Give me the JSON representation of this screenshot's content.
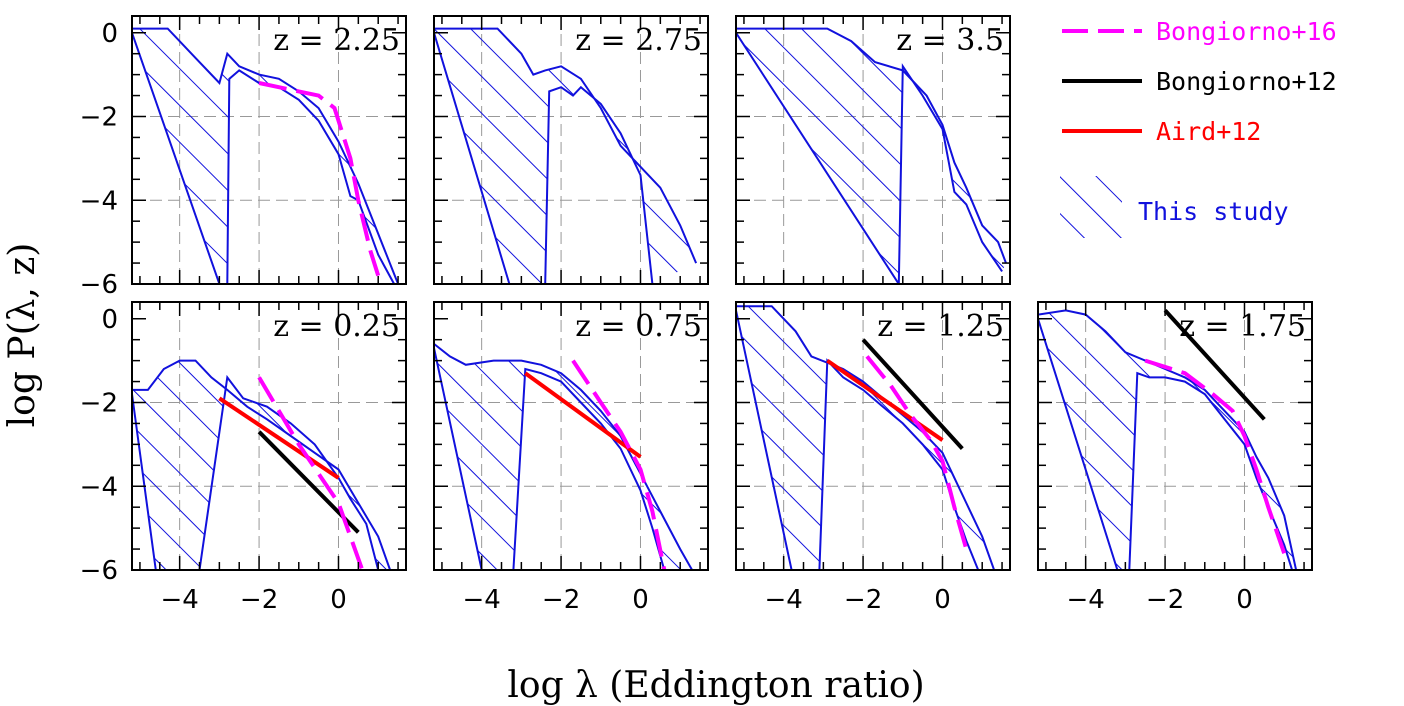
{
  "chart_data": {
    "type": "line",
    "xlabel": "log λ  (Eddington ratio)",
    "ylabel": "log P(λ,  z)",
    "xlim": [
      -5.2,
      1.7
    ],
    "ylim": [
      -6,
      0.4
    ],
    "xticks": [
      -4,
      -2,
      0
    ],
    "yticks": [
      0,
      -2,
      -4,
      -6
    ],
    "grid": true,
    "legend": {
      "placement": "top-right",
      "entries": [
        {
          "name": "Bongiorno+16",
          "color": "#ff00ff",
          "style": "dashed"
        },
        {
          "name": "Bongiorno+12",
          "color": "#000000",
          "style": "solid"
        },
        {
          "name": "Aird+12",
          "color": "#ff0000",
          "style": "solid"
        },
        {
          "name": "This study",
          "color": "#1111dd",
          "style": "hatched band"
        }
      ]
    },
    "panels": [
      {
        "z_label": "z = 2.25",
        "z": 2.25,
        "row": 0,
        "col": 0,
        "upper": [
          [
            -5.2,
            0.1
          ],
          [
            -4.3,
            0.1
          ],
          [
            -3.6,
            -0.6
          ],
          [
            -3.0,
            -1.2
          ],
          [
            -2.8,
            -0.5
          ],
          [
            -2.5,
            -0.8
          ],
          [
            -2.0,
            -1.0
          ],
          [
            -1.5,
            -1.1
          ],
          [
            -1.0,
            -1.4
          ],
          [
            -0.5,
            -1.8
          ],
          [
            0.0,
            -2.6
          ],
          [
            0.5,
            -3.6
          ],
          [
            1.0,
            -4.8
          ],
          [
            1.5,
            -6.0
          ]
        ],
        "lower": [
          [
            -5.2,
            0.0
          ],
          [
            -3.0,
            -6.0
          ],
          [
            -2.8,
            -6.0
          ],
          [
            -2.75,
            -1.1
          ],
          [
            -2.5,
            -0.9
          ],
          [
            -2.0,
            -1.2
          ],
          [
            -1.5,
            -1.3
          ],
          [
            -1.0,
            -1.6
          ],
          [
            -0.5,
            -2.1
          ],
          [
            0.0,
            -2.9
          ],
          [
            0.3,
            -3.9
          ],
          [
            0.5,
            -4.0
          ],
          [
            1.0,
            -5.3
          ],
          [
            1.4,
            -6.0
          ]
        ],
        "bongiorno16": [
          [
            -2.0,
            -1.2
          ],
          [
            -1.5,
            -1.3
          ],
          [
            -1.0,
            -1.4
          ],
          [
            -0.5,
            -1.5
          ],
          [
            -0.1,
            -1.8
          ],
          [
            0.1,
            -2.4
          ],
          [
            0.3,
            -3.0
          ],
          [
            0.5,
            -4.0
          ],
          [
            0.8,
            -5.2
          ],
          [
            1.0,
            -5.8
          ]
        ]
      },
      {
        "z_label": "z = 2.75",
        "z": 2.75,
        "row": 0,
        "col": 1,
        "upper": [
          [
            -5.2,
            0.1
          ],
          [
            -3.6,
            0.1
          ],
          [
            -3.0,
            -0.5
          ],
          [
            -2.7,
            -1.0
          ],
          [
            -2.4,
            -0.9
          ],
          [
            -2.0,
            -0.8
          ],
          [
            -1.5,
            -1.1
          ],
          [
            -1.0,
            -1.8
          ],
          [
            -0.5,
            -2.7
          ],
          [
            0.0,
            -3.2
          ],
          [
            0.5,
            -3.7
          ],
          [
            1.0,
            -4.6
          ],
          [
            1.4,
            -5.5
          ]
        ],
        "lower": [
          [
            -5.2,
            0.0
          ],
          [
            -3.3,
            -6.0
          ],
          [
            -2.4,
            -6.0
          ],
          [
            -2.3,
            -1.4
          ],
          [
            -2.0,
            -1.3
          ],
          [
            -1.7,
            -1.5
          ],
          [
            -1.5,
            -1.3
          ],
          [
            -1.0,
            -1.7
          ],
          [
            -0.5,
            -2.4
          ],
          [
            0.0,
            -3.4
          ],
          [
            0.3,
            -6.0
          ]
        ],
        "bongiorno16": []
      },
      {
        "z_label": "z = 3.5",
        "z": 3.5,
        "row": 0,
        "col": 2,
        "upper": [
          [
            -5.2,
            0.1
          ],
          [
            -2.9,
            0.1
          ],
          [
            -2.3,
            -0.2
          ],
          [
            -1.7,
            -0.7
          ],
          [
            -1.0,
            -0.9
          ],
          [
            -0.4,
            -1.5
          ],
          [
            0.0,
            -2.2
          ],
          [
            0.3,
            -3.1
          ],
          [
            0.6,
            -3.7
          ],
          [
            1.0,
            -4.6
          ],
          [
            1.4,
            -5.0
          ],
          [
            1.6,
            -5.5
          ]
        ],
        "lower": [
          [
            -5.2,
            0.0
          ],
          [
            -1.1,
            -6.0
          ],
          [
            -1.0,
            -0.8
          ],
          [
            -0.5,
            -1.5
          ],
          [
            0.0,
            -2.3
          ],
          [
            0.3,
            -3.8
          ],
          [
            0.6,
            -4.1
          ],
          [
            1.0,
            -5.0
          ],
          [
            1.5,
            -5.7
          ]
        ],
        "bongiorno16": []
      },
      {
        "z_label": "z = 0.25",
        "z": 0.25,
        "row": 1,
        "col": 0,
        "upper": [
          [
            -5.2,
            -1.7
          ],
          [
            -4.8,
            -1.7
          ],
          [
            -4.4,
            -1.2
          ],
          [
            -4.0,
            -1.0
          ],
          [
            -3.6,
            -1.0
          ],
          [
            -3.2,
            -1.4
          ],
          [
            -2.8,
            -1.7
          ],
          [
            -2.3,
            -2.1
          ],
          [
            -1.8,
            -2.4
          ],
          [
            -1.2,
            -2.8
          ],
          [
            -0.6,
            -3.2
          ],
          [
            0.0,
            -3.6
          ],
          [
            0.5,
            -4.4
          ],
          [
            1.0,
            -5.2
          ],
          [
            1.3,
            -6.0
          ]
        ],
        "lower": [
          [
            -5.2,
            -1.8
          ],
          [
            -4.6,
            -6.0
          ],
          [
            -3.5,
            -6.0
          ],
          [
            -2.8,
            -1.4
          ],
          [
            -2.4,
            -1.9
          ],
          [
            -1.8,
            -2.1
          ],
          [
            -1.2,
            -2.5
          ],
          [
            -0.6,
            -3.0
          ],
          [
            0.0,
            -3.8
          ],
          [
            0.3,
            -4.3
          ],
          [
            0.7,
            -4.9
          ],
          [
            1.0,
            -6.0
          ]
        ],
        "bongiorno16": [
          [
            -2.0,
            -1.4
          ],
          [
            -1.5,
            -2.2
          ],
          [
            -1.0,
            -3.0
          ],
          [
            -0.5,
            -3.7
          ],
          [
            0.0,
            -4.4
          ],
          [
            0.3,
            -5.2
          ],
          [
            0.6,
            -6.0
          ]
        ],
        "bongiorno12": [
          [
            -2.0,
            -2.7
          ],
          [
            0.5,
            -5.1
          ]
        ],
        "aird12": [
          [
            -3.0,
            -1.9
          ],
          [
            0.0,
            -3.8
          ]
        ]
      },
      {
        "z_label": "z = 0.75",
        "z": 0.75,
        "row": 1,
        "col": 1,
        "upper": [
          [
            -5.2,
            -0.6
          ],
          [
            -4.8,
            -0.9
          ],
          [
            -4.4,
            -1.1
          ],
          [
            -3.7,
            -1.0
          ],
          [
            -3.0,
            -1.0
          ],
          [
            -2.5,
            -1.1
          ],
          [
            -2.0,
            -1.3
          ],
          [
            -1.5,
            -1.7
          ],
          [
            -1.0,
            -2.2
          ],
          [
            -0.5,
            -2.8
          ],
          [
            0.0,
            -3.7
          ],
          [
            0.5,
            -4.6
          ],
          [
            1.0,
            -5.5
          ],
          [
            1.3,
            -6.0
          ]
        ],
        "lower": [
          [
            -5.2,
            -0.7
          ],
          [
            -4.0,
            -6.0
          ],
          [
            -3.2,
            -6.0
          ],
          [
            -2.9,
            -1.2
          ],
          [
            -2.5,
            -1.3
          ],
          [
            -2.0,
            -1.5
          ],
          [
            -1.5,
            -2.0
          ],
          [
            -1.0,
            -2.5
          ],
          [
            -0.5,
            -3.1
          ],
          [
            0.0,
            -4.1
          ],
          [
            0.3,
            -5.0
          ],
          [
            0.6,
            -6.0
          ]
        ],
        "bongiorno16": [
          [
            -1.7,
            -1.0
          ],
          [
            -1.0,
            -2.0
          ],
          [
            -0.5,
            -2.7
          ],
          [
            0.0,
            -3.6
          ],
          [
            0.3,
            -4.6
          ],
          [
            0.6,
            -6.0
          ]
        ],
        "aird12": [
          [
            -2.9,
            -1.3
          ],
          [
            0.0,
            -3.3
          ]
        ]
      },
      {
        "z_label": "z = 1.25",
        "z": 1.25,
        "row": 1,
        "col": 2,
        "upper": [
          [
            -5.2,
            0.3
          ],
          [
            -4.3,
            0.3
          ],
          [
            -3.7,
            -0.3
          ],
          [
            -3.3,
            -0.9
          ],
          [
            -2.5,
            -1.2
          ],
          [
            -2.0,
            -1.5
          ],
          [
            -1.5,
            -1.9
          ],
          [
            -1.0,
            -2.3
          ],
          [
            -0.5,
            -2.7
          ],
          [
            0.0,
            -3.2
          ],
          [
            0.3,
            -3.8
          ],
          [
            0.6,
            -4.4
          ],
          [
            1.0,
            -5.2
          ],
          [
            1.3,
            -6.0
          ]
        ],
        "lower": [
          [
            -5.2,
            0.2
          ],
          [
            -3.8,
            -6.0
          ],
          [
            -3.1,
            -6.0
          ],
          [
            -2.9,
            -1.0
          ],
          [
            -2.5,
            -1.4
          ],
          [
            -2.0,
            -1.7
          ],
          [
            -1.5,
            -2.1
          ],
          [
            -1.0,
            -2.5
          ],
          [
            -0.5,
            -3.0
          ],
          [
            0.0,
            -3.6
          ],
          [
            0.3,
            -4.5
          ],
          [
            0.6,
            -5.3
          ],
          [
            0.9,
            -6.0
          ]
        ],
        "bongiorno16": [
          [
            -1.9,
            -0.9
          ],
          [
            -1.3,
            -1.6
          ],
          [
            -0.8,
            -2.3
          ],
          [
            -0.3,
            -2.9
          ],
          [
            0.0,
            -3.4
          ],
          [
            0.3,
            -4.5
          ],
          [
            0.6,
            -5.5
          ]
        ],
        "bongiorno12": [
          [
            -2.0,
            -0.5
          ],
          [
            0.5,
            -3.1
          ]
        ],
        "aird12": [
          [
            -2.9,
            -1.0
          ],
          [
            0.0,
            -2.9
          ]
        ]
      },
      {
        "z_label": "z = 1.75",
        "z": 1.75,
        "row": 1,
        "col": 3,
        "upper": [
          [
            -5.2,
            0.1
          ],
          [
            -4.5,
            0.2
          ],
          [
            -4.0,
            0.1
          ],
          [
            -3.5,
            -0.3
          ],
          [
            -3.0,
            -0.8
          ],
          [
            -2.5,
            -1.0
          ],
          [
            -2.0,
            -1.2
          ],
          [
            -1.5,
            -1.4
          ],
          [
            -1.0,
            -1.7
          ],
          [
            -0.5,
            -2.2
          ],
          [
            0.0,
            -2.7
          ],
          [
            0.3,
            -3.3
          ],
          [
            0.6,
            -3.8
          ],
          [
            1.0,
            -4.7
          ],
          [
            1.3,
            -6.0
          ]
        ],
        "lower": [
          [
            -5.2,
            0.0
          ],
          [
            -3.2,
            -6.0
          ],
          [
            -2.9,
            -6.0
          ],
          [
            -2.7,
            -1.3
          ],
          [
            -2.4,
            -1.4
          ],
          [
            -2.0,
            -1.4
          ],
          [
            -1.5,
            -1.5
          ],
          [
            -1.0,
            -1.8
          ],
          [
            -0.5,
            -2.4
          ],
          [
            0.0,
            -3.0
          ],
          [
            0.3,
            -3.8
          ],
          [
            0.6,
            -4.5
          ],
          [
            1.0,
            -5.4
          ],
          [
            1.2,
            -6.0
          ]
        ],
        "bongiorno16": [
          [
            -2.5,
            -1.0
          ],
          [
            -1.5,
            -1.3
          ],
          [
            -0.8,
            -1.8
          ],
          [
            -0.3,
            -2.2
          ],
          [
            0.0,
            -2.8
          ],
          [
            0.3,
            -3.6
          ],
          [
            0.6,
            -4.5
          ],
          [
            1.0,
            -5.6
          ]
        ],
        "bongiorno12": [
          [
            -2.0,
            0.2
          ],
          [
            0.5,
            -2.4
          ]
        ]
      }
    ]
  }
}
